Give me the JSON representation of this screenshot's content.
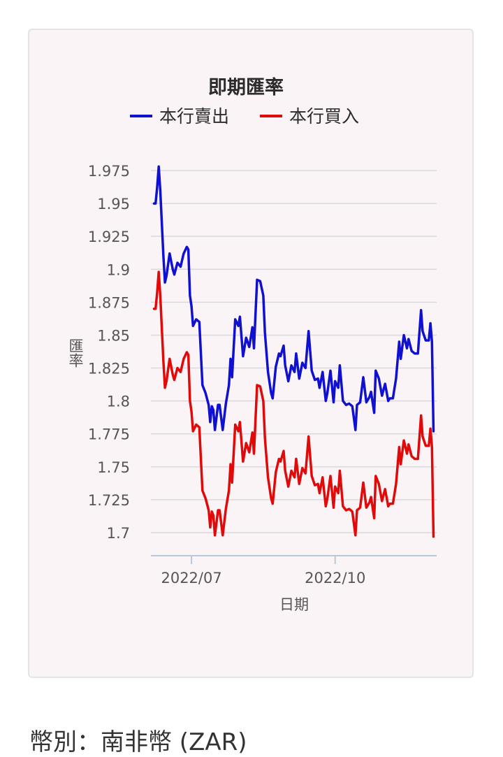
{
  "footer": {
    "text": "幣別：南非幣 (ZAR)"
  },
  "colors": {
    "sell": "#1010d0",
    "buy": "#e00a0a",
    "grid": "#d8d8de",
    "card_bg": "#fbf4f7"
  },
  "chart_data": {
    "type": "line",
    "title": "即期匯率",
    "xlabel": "日期",
    "ylabel": "匯率",
    "ylim": [
      1.685,
      1.982
    ],
    "yticks": [
      1.975,
      1.95,
      1.925,
      1.9,
      1.875,
      1.85,
      1.825,
      1.8,
      1.775,
      1.75,
      1.725,
      1.7
    ],
    "xticks": [
      {
        "label": "2022/07",
        "date": "2022-07-01"
      },
      {
        "label": "2022/10",
        "date": "2022-10-01"
      }
    ],
    "x_range": [
      "2022-06-05",
      "2022-12-05"
    ],
    "legend_position": "top",
    "series": [
      {
        "name": "本行賣出",
        "color": "#1010d0",
        "points": [
          [
            "2022-06-07",
            1.95
          ],
          [
            "2022-06-08",
            1.95
          ],
          [
            "2022-06-09",
            1.962
          ],
          [
            "2022-06-10",
            1.978
          ],
          [
            "2022-06-11",
            1.96
          ],
          [
            "2022-06-13",
            1.91
          ],
          [
            "2022-06-14",
            1.89
          ],
          [
            "2022-06-15",
            1.895
          ],
          [
            "2022-06-17",
            1.912
          ],
          [
            "2022-06-19",
            1.9
          ],
          [
            "2022-06-20",
            1.896
          ],
          [
            "2022-06-22",
            1.905
          ],
          [
            "2022-06-24",
            1.902
          ],
          [
            "2022-06-26",
            1.912
          ],
          [
            "2022-06-28",
            1.917
          ],
          [
            "2022-06-29",
            1.915
          ],
          [
            "2022-06-30",
            1.88
          ],
          [
            "2022-07-01",
            1.872
          ],
          [
            "2022-07-02",
            1.857
          ],
          [
            "2022-07-04",
            1.862
          ],
          [
            "2022-07-06",
            1.86
          ],
          [
            "2022-07-08",
            1.812
          ],
          [
            "2022-07-10",
            1.806
          ],
          [
            "2022-07-12",
            1.797
          ],
          [
            "2022-07-13",
            1.784
          ],
          [
            "2022-07-14",
            1.796
          ],
          [
            "2022-07-15",
            1.793
          ],
          [
            "2022-07-16",
            1.778
          ],
          [
            "2022-07-18",
            1.797
          ],
          [
            "2022-07-19",
            1.797
          ],
          [
            "2022-07-21",
            1.778
          ],
          [
            "2022-07-23",
            1.798
          ],
          [
            "2022-07-25",
            1.812
          ],
          [
            "2022-07-26",
            1.832
          ],
          [
            "2022-07-27",
            1.818
          ],
          [
            "2022-07-29",
            1.862
          ],
          [
            "2022-07-31",
            1.857
          ],
          [
            "2022-08-01",
            1.864
          ],
          [
            "2022-08-03",
            1.834
          ],
          [
            "2022-08-05",
            1.848
          ],
          [
            "2022-08-07",
            1.841
          ],
          [
            "2022-08-09",
            1.856
          ],
          [
            "2022-08-10",
            1.84
          ],
          [
            "2022-08-12",
            1.892
          ],
          [
            "2022-08-14",
            1.891
          ],
          [
            "2022-08-16",
            1.88
          ],
          [
            "2022-08-17",
            1.852
          ],
          [
            "2022-08-19",
            1.822
          ],
          [
            "2022-08-21",
            1.806
          ],
          [
            "2022-08-22",
            1.802
          ],
          [
            "2022-08-24",
            1.826
          ],
          [
            "2022-08-26",
            1.836
          ],
          [
            "2022-08-27",
            1.834
          ],
          [
            "2022-08-29",
            1.842
          ],
          [
            "2022-08-30",
            1.827
          ],
          [
            "2022-09-01",
            1.815
          ],
          [
            "2022-09-03",
            1.827
          ],
          [
            "2022-09-05",
            1.822
          ],
          [
            "2022-09-06",
            1.836
          ],
          [
            "2022-09-08",
            1.817
          ],
          [
            "2022-09-10",
            1.829
          ],
          [
            "2022-09-12",
            1.825
          ],
          [
            "2022-09-14",
            1.853
          ],
          [
            "2022-09-16",
            1.823
          ],
          [
            "2022-09-18",
            1.816
          ],
          [
            "2022-09-20",
            1.817
          ],
          [
            "2022-09-21",
            1.81
          ],
          [
            "2022-09-23",
            1.822
          ],
          [
            "2022-09-25",
            1.8
          ],
          [
            "2022-09-26",
            1.806
          ],
          [
            "2022-09-28",
            1.823
          ],
          [
            "2022-09-30",
            1.799
          ],
          [
            "2022-10-01",
            1.815
          ],
          [
            "2022-10-03",
            1.81
          ],
          [
            "2022-10-04",
            1.827
          ],
          [
            "2022-10-06",
            1.8
          ],
          [
            "2022-10-08",
            1.797
          ],
          [
            "2022-10-10",
            1.798
          ],
          [
            "2022-10-12",
            1.796
          ],
          [
            "2022-10-14",
            1.778
          ],
          [
            "2022-10-15",
            1.797
          ],
          [
            "2022-10-17",
            1.799
          ],
          [
            "2022-10-19",
            1.818
          ],
          [
            "2022-10-21",
            1.799
          ],
          [
            "2022-10-23",
            1.803
          ],
          [
            "2022-10-24",
            1.807
          ],
          [
            "2022-10-26",
            1.791
          ],
          [
            "2022-10-27",
            1.823
          ],
          [
            "2022-10-29",
            1.817
          ],
          [
            "2022-10-31",
            1.804
          ],
          [
            "2022-11-02",
            1.813
          ],
          [
            "2022-11-04",
            1.8
          ],
          [
            "2022-11-05",
            1.802
          ],
          [
            "2022-11-07",
            1.802
          ],
          [
            "2022-11-09",
            1.817
          ],
          [
            "2022-11-11",
            1.845
          ],
          [
            "2022-11-12",
            1.832
          ],
          [
            "2022-11-14",
            1.85
          ],
          [
            "2022-11-16",
            1.84
          ],
          [
            "2022-11-17",
            1.847
          ],
          [
            "2022-11-19",
            1.838
          ],
          [
            "2022-11-21",
            1.836
          ],
          [
            "2022-11-23",
            1.836
          ],
          [
            "2022-11-25",
            1.869
          ],
          [
            "2022-11-26",
            1.853
          ],
          [
            "2022-11-28",
            1.846
          ],
          [
            "2022-11-30",
            1.846
          ],
          [
            "2022-12-01",
            1.859
          ],
          [
            "2022-12-02",
            1.845
          ],
          [
            "2022-12-03",
            1.777
          ]
        ]
      },
      {
        "name": "本行買入",
        "color": "#e00a0a",
        "points": [
          [
            "2022-06-07",
            1.87
          ],
          [
            "2022-06-08",
            1.87
          ],
          [
            "2022-06-09",
            1.882
          ],
          [
            "2022-06-10",
            1.898
          ],
          [
            "2022-06-11",
            1.88
          ],
          [
            "2022-06-13",
            1.83
          ],
          [
            "2022-06-14",
            1.81
          ],
          [
            "2022-06-15",
            1.815
          ],
          [
            "2022-06-17",
            1.832
          ],
          [
            "2022-06-19",
            1.82
          ],
          [
            "2022-06-20",
            1.816
          ],
          [
            "2022-06-22",
            1.825
          ],
          [
            "2022-06-24",
            1.822
          ],
          [
            "2022-06-26",
            1.832
          ],
          [
            "2022-06-28",
            1.837
          ],
          [
            "2022-06-29",
            1.835
          ],
          [
            "2022-06-30",
            1.8
          ],
          [
            "2022-07-01",
            1.792
          ],
          [
            "2022-07-02",
            1.777
          ],
          [
            "2022-07-04",
            1.782
          ],
          [
            "2022-07-06",
            1.78
          ],
          [
            "2022-07-08",
            1.732
          ],
          [
            "2022-07-10",
            1.726
          ],
          [
            "2022-07-12",
            1.717
          ],
          [
            "2022-07-13",
            1.704
          ],
          [
            "2022-07-14",
            1.716
          ],
          [
            "2022-07-15",
            1.713
          ],
          [
            "2022-07-16",
            1.698
          ],
          [
            "2022-07-18",
            1.717
          ],
          [
            "2022-07-19",
            1.717
          ],
          [
            "2022-07-21",
            1.698
          ],
          [
            "2022-07-23",
            1.718
          ],
          [
            "2022-07-25",
            1.732
          ],
          [
            "2022-07-26",
            1.752
          ],
          [
            "2022-07-27",
            1.738
          ],
          [
            "2022-07-29",
            1.782
          ],
          [
            "2022-07-31",
            1.777
          ],
          [
            "2022-08-01",
            1.784
          ],
          [
            "2022-08-03",
            1.754
          ],
          [
            "2022-08-05",
            1.768
          ],
          [
            "2022-08-07",
            1.761
          ],
          [
            "2022-08-09",
            1.776
          ],
          [
            "2022-08-10",
            1.76
          ],
          [
            "2022-08-12",
            1.812
          ],
          [
            "2022-08-14",
            1.811
          ],
          [
            "2022-08-16",
            1.8
          ],
          [
            "2022-08-17",
            1.772
          ],
          [
            "2022-08-19",
            1.742
          ],
          [
            "2022-08-21",
            1.726
          ],
          [
            "2022-08-22",
            1.722
          ],
          [
            "2022-08-24",
            1.746
          ],
          [
            "2022-08-26",
            1.756
          ],
          [
            "2022-08-27",
            1.754
          ],
          [
            "2022-08-29",
            1.762
          ],
          [
            "2022-08-30",
            1.747
          ],
          [
            "2022-09-01",
            1.735
          ],
          [
            "2022-09-03",
            1.747
          ],
          [
            "2022-09-05",
            1.742
          ],
          [
            "2022-09-06",
            1.756
          ],
          [
            "2022-09-08",
            1.737
          ],
          [
            "2022-09-10",
            1.749
          ],
          [
            "2022-09-12",
            1.745
          ],
          [
            "2022-09-14",
            1.773
          ],
          [
            "2022-09-16",
            1.743
          ],
          [
            "2022-09-18",
            1.736
          ],
          [
            "2022-09-20",
            1.737
          ],
          [
            "2022-09-21",
            1.73
          ],
          [
            "2022-09-23",
            1.742
          ],
          [
            "2022-09-25",
            1.72
          ],
          [
            "2022-09-26",
            1.726
          ],
          [
            "2022-09-28",
            1.743
          ],
          [
            "2022-09-30",
            1.719
          ],
          [
            "2022-10-01",
            1.735
          ],
          [
            "2022-10-03",
            1.73
          ],
          [
            "2022-10-04",
            1.747
          ],
          [
            "2022-10-06",
            1.72
          ],
          [
            "2022-10-08",
            1.717
          ],
          [
            "2022-10-10",
            1.718
          ],
          [
            "2022-10-12",
            1.716
          ],
          [
            "2022-10-14",
            1.698
          ],
          [
            "2022-10-15",
            1.717
          ],
          [
            "2022-10-17",
            1.719
          ],
          [
            "2022-10-19",
            1.738
          ],
          [
            "2022-10-21",
            1.719
          ],
          [
            "2022-10-23",
            1.723
          ],
          [
            "2022-10-24",
            1.727
          ],
          [
            "2022-10-26",
            1.711
          ],
          [
            "2022-10-27",
            1.743
          ],
          [
            "2022-10-29",
            1.737
          ],
          [
            "2022-10-31",
            1.724
          ],
          [
            "2022-11-02",
            1.733
          ],
          [
            "2022-11-04",
            1.72
          ],
          [
            "2022-11-05",
            1.722
          ],
          [
            "2022-11-07",
            1.722
          ],
          [
            "2022-11-09",
            1.737
          ],
          [
            "2022-11-11",
            1.765
          ],
          [
            "2022-11-12",
            1.752
          ],
          [
            "2022-11-14",
            1.77
          ],
          [
            "2022-11-16",
            1.76
          ],
          [
            "2022-11-17",
            1.767
          ],
          [
            "2022-11-19",
            1.758
          ],
          [
            "2022-11-21",
            1.756
          ],
          [
            "2022-11-23",
            1.756
          ],
          [
            "2022-11-25",
            1.789
          ],
          [
            "2022-11-26",
            1.773
          ],
          [
            "2022-11-28",
            1.766
          ],
          [
            "2022-11-30",
            1.766
          ],
          [
            "2022-12-01",
            1.779
          ],
          [
            "2022-12-02",
            1.765
          ],
          [
            "2022-12-03",
            1.697
          ]
        ]
      }
    ]
  }
}
